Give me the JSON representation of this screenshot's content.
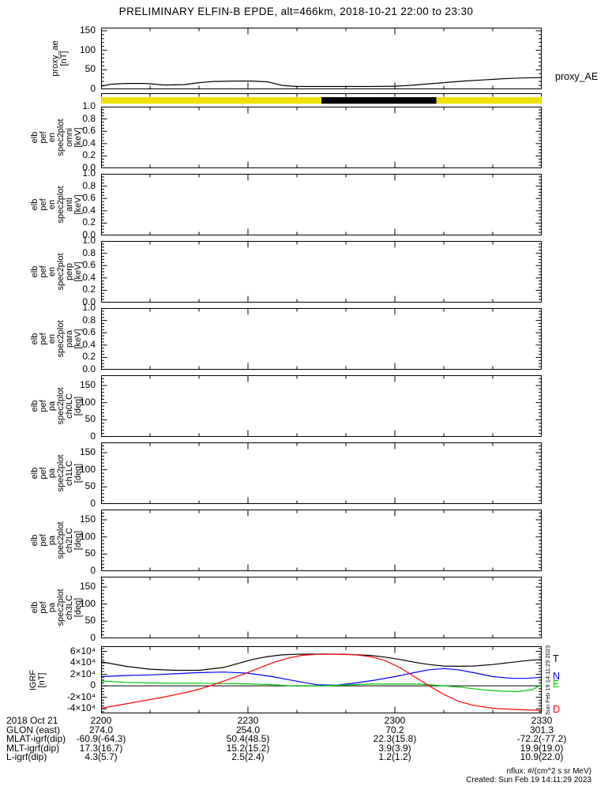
{
  "title": "PRELIMINARY ELFIN-B EPDE, alt=466km, 2018-10-21 22:00 to 23:30",
  "colors": {
    "axis": "#000000",
    "bar_yellow": "#f0e000",
    "bar_black": "#000000",
    "series_black": "#000000",
    "series_blue": "#0000ff",
    "series_green": "#00c800",
    "series_red": "#ff0000"
  },
  "x_axis": {
    "total_minutes": 90,
    "major_step_min": 30,
    "minor_step_min": 10,
    "tick_labels": [
      "2200",
      "2230",
      "2300",
      "2330"
    ]
  },
  "chart_data": [
    {
      "id": "proxy_ae",
      "type": "line",
      "ylabel_lines": [
        "proxy_ae",
        "[nT]"
      ],
      "right_label": "proxy_AE",
      "ylim": [
        0,
        158
      ],
      "y_minor_step": 10,
      "ytick_values": [
        0,
        50,
        100,
        150
      ],
      "ytick_labels": [
        "0",
        "50",
        "100",
        "150"
      ],
      "series": [
        {
          "name": "proxy_AE",
          "color": "#000000",
          "x": [
            0,
            2,
            5,
            9,
            13,
            17,
            20,
            23,
            27,
            31,
            34,
            37,
            40,
            45,
            50,
            55,
            60,
            63,
            66,
            70,
            74,
            78,
            82,
            86,
            90
          ],
          "y": [
            8,
            13,
            15,
            15,
            11,
            12,
            17,
            20,
            21,
            21,
            19,
            10,
            7,
            7,
            7,
            7,
            8,
            10,
            13,
            17,
            21,
            24,
            27,
            29,
            30
          ]
        }
      ]
    },
    {
      "id": "status_bar",
      "type": "strip",
      "segments": [
        {
          "start_min": 0,
          "end_min": 45,
          "color": "#f0e000"
        },
        {
          "start_min": 45,
          "end_min": 68.5,
          "color": "#000000"
        },
        {
          "start_min": 68.5,
          "end_min": 90,
          "color": "#f0e000"
        }
      ]
    },
    {
      "id": "en_omni",
      "type": "spectrogram-empty",
      "ylabel_lines": [
        "elb",
        "pef",
        "en",
        "spec2plot",
        "omni",
        "[keV]"
      ],
      "ylim": [
        0,
        1.0
      ],
      "y_minor_step": 0.05,
      "ytick_values": [
        0,
        0.2,
        0.4,
        0.6,
        0.8,
        1.0
      ],
      "ytick_labels": [
        "0.0",
        "0.2",
        "0.4",
        "0.6",
        "0.8",
        "1.0"
      ],
      "series": []
    },
    {
      "id": "en_anti",
      "type": "spectrogram-empty",
      "ylabel_lines": [
        "elb",
        "pef",
        "en",
        "spec2plot",
        "anti",
        "[keV]"
      ],
      "ylim": [
        0,
        1.0
      ],
      "y_minor_step": 0.05,
      "ytick_values": [
        0,
        0.2,
        0.4,
        0.6,
        0.8,
        1.0
      ],
      "ytick_labels": [
        "0.0",
        "0.2",
        "0.4",
        "0.6",
        "0.8",
        "1.0"
      ],
      "series": []
    },
    {
      "id": "en_perp",
      "type": "spectrogram-empty",
      "ylabel_lines": [
        "elb",
        "pef",
        "en",
        "spec2plot",
        "perp",
        "[keV]"
      ],
      "ylim": [
        0,
        1.0
      ],
      "y_minor_step": 0.05,
      "ytick_values": [
        0,
        0.2,
        0.4,
        0.6,
        0.8,
        1.0
      ],
      "ytick_labels": [
        "0.0",
        "0.2",
        "0.4",
        "0.6",
        "0.8",
        "1.0"
      ],
      "series": []
    },
    {
      "id": "en_para",
      "type": "spectrogram-empty",
      "ylabel_lines": [
        "elb",
        "pef",
        "en",
        "spec2plot",
        "para",
        "[keV]"
      ],
      "ylim": [
        0,
        1.0
      ],
      "y_minor_step": 0.05,
      "ytick_values": [
        0,
        0.2,
        0.4,
        0.6,
        0.8,
        1.0
      ],
      "ytick_labels": [
        "0.0",
        "0.2",
        "0.4",
        "0.6",
        "0.8",
        "1.0"
      ],
      "series": []
    },
    {
      "id": "pa_ch0lc",
      "type": "spectrogram-empty",
      "ylabel_lines": [
        "elb",
        "pef",
        "pa",
        "spec2plot",
        "ch0LC",
        "[deg]"
      ],
      "ylim": [
        0,
        180
      ],
      "y_minor_step": 10,
      "ytick_values": [
        0,
        50,
        100,
        150
      ],
      "ytick_labels": [
        "0",
        "50",
        "100",
        "150"
      ],
      "series": []
    },
    {
      "id": "pa_ch1lc",
      "type": "spectrogram-empty",
      "ylabel_lines": [
        "elb",
        "pef",
        "pa",
        "spec2plot",
        "ch1LC",
        "[deg]"
      ],
      "ylim": [
        0,
        180
      ],
      "y_minor_step": 10,
      "ytick_values": [
        0,
        50,
        100,
        150
      ],
      "ytick_labels": [
        "0",
        "50",
        "100",
        "150"
      ],
      "series": []
    },
    {
      "id": "pa_ch2lc",
      "type": "spectrogram-empty",
      "ylabel_lines": [
        "elb",
        "pef",
        "pa",
        "spec2plot",
        "ch2LC",
        "[deg]"
      ],
      "ylim": [
        0,
        180
      ],
      "y_minor_step": 10,
      "ytick_values": [
        0,
        50,
        100,
        150
      ],
      "ytick_labels": [
        "0",
        "50",
        "100",
        "150"
      ],
      "series": []
    },
    {
      "id": "pa_ch3lc",
      "type": "spectrogram-empty",
      "ylabel_lines": [
        "elb",
        "pef",
        "pa",
        "spec2plot",
        "ch3LC",
        "[deg]"
      ],
      "ylim": [
        0,
        180
      ],
      "y_minor_step": 10,
      "ytick_values": [
        0,
        50,
        100,
        150
      ],
      "ytick_labels": [
        "0",
        "50",
        "100",
        "150"
      ],
      "series": []
    },
    {
      "id": "igrf",
      "type": "line",
      "ylabel_lines": [
        "IGRF",
        "[nT]"
      ],
      "ylim": [
        -48000,
        69000
      ],
      "y_minor_step": 5000,
      "ytick_values": [
        -40000,
        -20000,
        0,
        20000,
        40000,
        60000
      ],
      "ytick_labels": [
        "-4×10⁴",
        "-2×10⁴",
        "0",
        "2×10⁴",
        "4×10⁴",
        "6×10⁴"
      ],
      "zero_line": true,
      "side_note": "Sun Feb 19 14:11:29 2023",
      "series": [
        {
          "name": "T",
          "label": "T",
          "color": "#000000",
          "x": [
            0,
            5,
            10,
            15,
            20,
            25,
            28,
            31,
            34,
            37,
            40,
            45,
            50,
            55,
            58,
            61,
            64,
            67,
            70,
            73,
            76,
            80,
            84,
            87,
            90
          ],
          "y": [
            42000,
            34000,
            29000,
            27000,
            27000,
            32000,
            39000,
            46000,
            51000,
            54000,
            55000,
            55500,
            55000,
            53000,
            50000,
            46000,
            41000,
            37000,
            34500,
            34000,
            34500,
            37000,
            41000,
            44000,
            46000
          ]
        },
        {
          "name": "N",
          "label": "N",
          "color": "#0000ff",
          "x": [
            0,
            5,
            10,
            15,
            20,
            25,
            30,
            35,
            40,
            44,
            48,
            52,
            56,
            60,
            64,
            67,
            70,
            73,
            76,
            80,
            84,
            87,
            90
          ],
          "y": [
            16000,
            18000,
            19000,
            21000,
            23000,
            24000,
            22000,
            16000,
            8000,
            2000,
            1000,
            5000,
            10000,
            16000,
            23000,
            28000,
            30000,
            28000,
            23000,
            16000,
            13000,
            13000,
            15000
          ]
        },
        {
          "name": "E",
          "label": "E",
          "color": "#00c800",
          "x": [
            0,
            5,
            10,
            15,
            20,
            25,
            30,
            35,
            40,
            45,
            50,
            55,
            60,
            65,
            70,
            74,
            78,
            82,
            85,
            88,
            90
          ],
          "y": [
            8500,
            6000,
            5000,
            4500,
            4500,
            4000,
            3500,
            2000,
            -500,
            0,
            1500,
            3000,
            3000,
            3000,
            0,
            -3000,
            -7000,
            -9500,
            -10000,
            -7000,
            2000
          ]
        },
        {
          "name": "D",
          "label": "D",
          "color": "#ff0000",
          "x": [
            0,
            4,
            8,
            12,
            16,
            20,
            23,
            26,
            29,
            32,
            35,
            38,
            41,
            44,
            48,
            52,
            55,
            58,
            61,
            64,
            67,
            70,
            73,
            76,
            80,
            84,
            87,
            90
          ],
          "y": [
            -39000,
            -33000,
            -27000,
            -21000,
            -14000,
            -6000,
            2000,
            11000,
            20000,
            30000,
            40000,
            48000,
            53000,
            55000,
            55000,
            54000,
            51000,
            44000,
            32000,
            16000,
            0,
            -15000,
            -27000,
            -34000,
            -39000,
            -41000,
            -42000,
            -43000
          ]
        }
      ]
    }
  ],
  "bottom_rows": [
    {
      "label": "2018 Oct 21",
      "values": [
        "2200",
        "2230",
        "2300",
        "2330"
      ]
    },
    {
      "label": "GLON (east)",
      "values": [
        "274.0",
        "254.0",
        "70.2",
        "301.3"
      ]
    },
    {
      "label": "MLAT-igrf(dip)",
      "values": [
        "-60.9(-64.3)",
        "50.4(48.5)",
        "22.3(15.8)",
        "-72.2(-77.2)"
      ]
    },
    {
      "label": "MLT-igrf(dip)",
      "values": [
        "17.3(16.7)",
        "15.2(15.2)",
        "3.9(3.9)",
        "19.9(19.0)"
      ]
    },
    {
      "label": "L-igrf(dip)",
      "values": [
        "4.3(5.7)",
        "2.5(2.4)",
        "1.2(1.2)",
        "10.9(22.0)"
      ]
    }
  ],
  "footer": {
    "units_note": "nflux: #/(cm^2 s sr MeV)",
    "created": "Created: Sun Feb 19 14:11:29 2023"
  }
}
